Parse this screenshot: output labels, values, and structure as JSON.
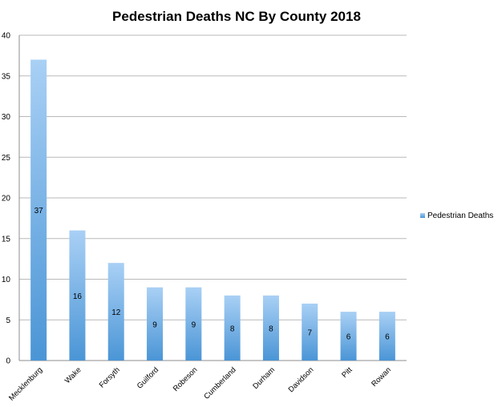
{
  "chart_data": {
    "type": "bar",
    "title": "Pedestrian Deaths NC By County 2018",
    "xlabel": "",
    "ylabel": "",
    "ylim": [
      0,
      40
    ],
    "yticks": [
      0,
      5,
      10,
      15,
      20,
      25,
      30,
      35,
      40
    ],
    "grid": true,
    "legend_position": "right",
    "categories": [
      "Mecklenburg",
      "Wake",
      "Forsyth",
      "Guilford",
      "Robeson",
      "Cumberland",
      "Durham",
      "Davidson",
      "Pitt",
      "Rowan"
    ],
    "series": [
      {
        "name": "Pedestrian Deaths",
        "values": [
          37,
          16,
          12,
          9,
          9,
          8,
          8,
          7,
          6,
          6
        ],
        "color_top": "#a9d0f5",
        "color_bottom": "#4a95d6"
      }
    ]
  }
}
